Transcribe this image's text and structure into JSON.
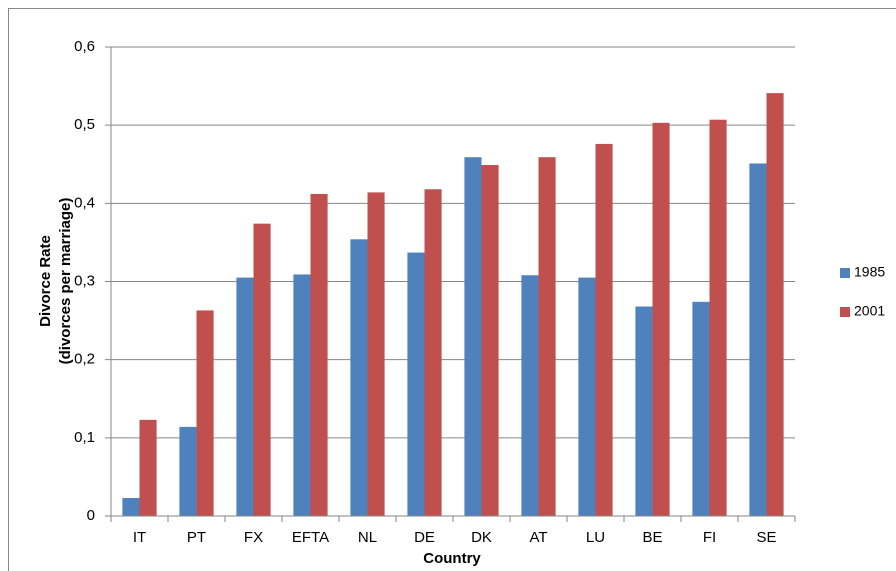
{
  "chart_data": {
    "type": "bar",
    "ylabel": [
      "Divorce Rate",
      "(divorces per marriage)"
    ],
    "xlabel": "Country",
    "categories": [
      "IT",
      "PT",
      "FX",
      "EFTA",
      "NL",
      "DE",
      "DK",
      "AT",
      "LU",
      "BE",
      "FI",
      "SE"
    ],
    "series": [
      {
        "name": "1985",
        "color": "#4f81bd",
        "values": [
          0.023,
          0.114,
          0.305,
          0.309,
          0.354,
          0.337,
          0.459,
          0.308,
          0.305,
          0.268,
          0.274,
          0.451
        ]
      },
      {
        "name": "2001",
        "color": "#c0504d",
        "values": [
          0.123,
          0.263,
          0.374,
          0.412,
          0.414,
          0.418,
          0.449,
          0.459,
          0.476,
          0.503,
          0.507,
          0.541
        ]
      }
    ],
    "ylim": [
      0,
      0.6
    ],
    "yticks": [
      0,
      {
        "value": 0.1,
        "label": "0,1"
      },
      {
        "value": 0.2,
        "label": "0,2"
      },
      {
        "value": 0.3,
        "label": "0,3"
      },
      {
        "value": 0.4,
        "label": "0,4"
      },
      {
        "value": 0.5,
        "label": "0,5"
      },
      {
        "value": 0.6,
        "label": "0,6"
      }
    ],
    "grid": true,
    "legend": "right"
  }
}
